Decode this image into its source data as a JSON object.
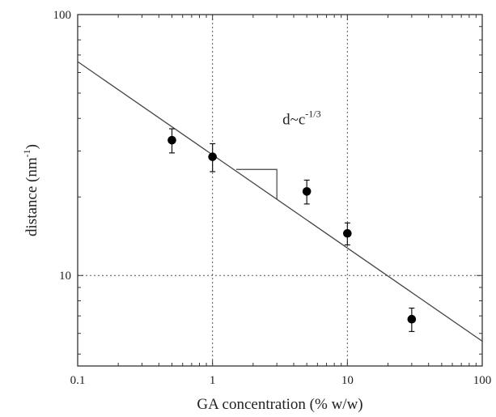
{
  "chart_data": {
    "type": "scatter",
    "title": "",
    "xlabel": "GA concentration (% w/w)",
    "ylabel": {
      "base": "distance (nm",
      "sup": "-1",
      "end": ")"
    },
    "xscale": "log",
    "yscale": "log",
    "xlim": [
      0.1,
      100
    ],
    "ylim": [
      4.5,
      100
    ],
    "x_ticks": [
      0.1,
      1,
      10,
      100
    ],
    "x_tick_labels": [
      "0.1",
      "1",
      "10",
      "100"
    ],
    "y_ticks": [
      10,
      100
    ],
    "y_tick_labels": [
      "10",
      "100"
    ],
    "grid": "dotted at decades",
    "points": [
      {
        "x": 0.5,
        "y": 33,
        "err_low": 3.5,
        "err_high": 3.5
      },
      {
        "x": 1,
        "y": 28.5,
        "err_low": 3.5,
        "err_high": 3.5
      },
      {
        "x": 5,
        "y": 21,
        "err_low": 2.2,
        "err_high": 2.2
      },
      {
        "x": 10,
        "y": 14.5,
        "err_low": 1.4,
        "err_high": 1.4
      },
      {
        "x": 30,
        "y": 6.8,
        "err_low": 0.7,
        "err_high": 0.7
      }
    ],
    "fit_line": {
      "x": [
        0.1,
        100
      ],
      "y": [
        66,
        5.6
      ]
    },
    "slope_triangle": {
      "x": [
        1.5,
        3
      ],
      "y": [
        25.5,
        19.6
      ]
    },
    "annotation": {
      "base": "d~c",
      "sup": "-1/3",
      "x": 3.3,
      "y": 38
    }
  }
}
